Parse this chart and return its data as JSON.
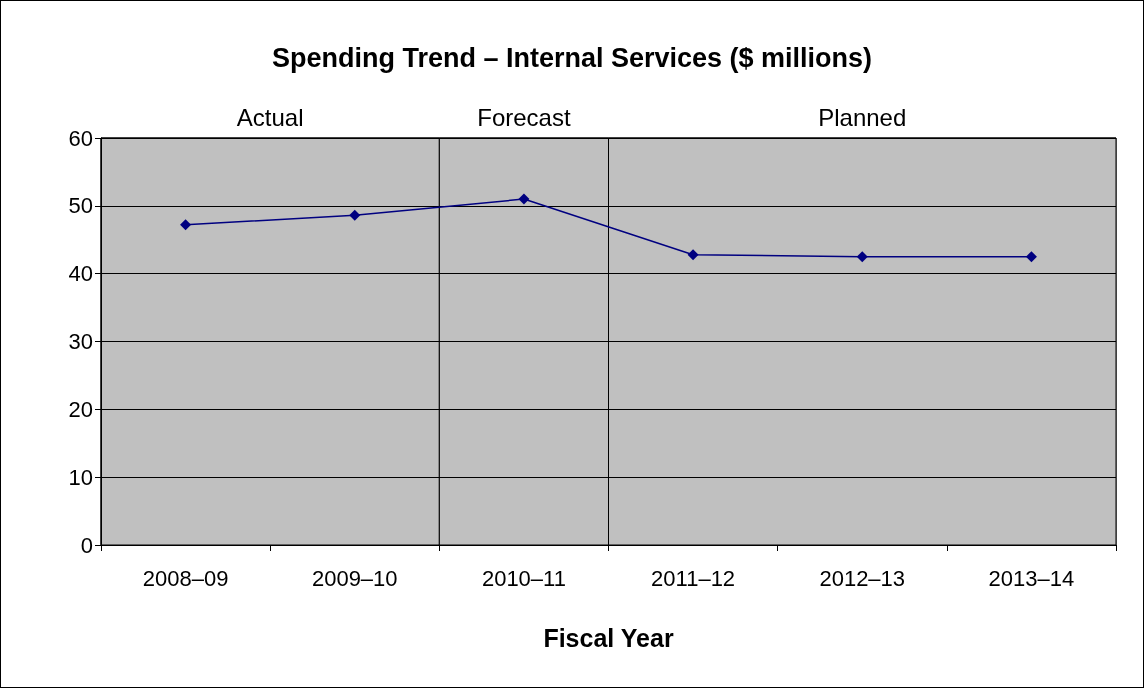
{
  "chart_data": {
    "type": "line",
    "title": "Spending Trend – Internal Services ($ millions)",
    "xlabel": "Fiscal Year",
    "categories": [
      "2008–09",
      "2009–10",
      "2010–11",
      "2011–12",
      "2012–13",
      "2013–14"
    ],
    "series": [
      {
        "color": "#000080",
        "values": [
          47.2,
          48.6,
          51.0,
          42.8,
          42.5,
          42.5
        ]
      }
    ],
    "ylim": [
      0,
      60
    ],
    "yticks": [
      0,
      10,
      20,
      30,
      40,
      50,
      60
    ],
    "grid": "y",
    "marker": "diamond",
    "line_style": "solid",
    "bands": [
      {
        "axis": "x",
        "from": "2008–09",
        "to": "2009–10",
        "label": "Actual",
        "color": "#c0c0c0"
      },
      {
        "axis": "x",
        "from": "2010–11",
        "to": "2010–11",
        "label": "Forecast",
        "color": "#c0c0c0"
      },
      {
        "axis": "x",
        "from": "2011–12",
        "to": "2013–14",
        "label": "Planned",
        "color": "#c0c0c0"
      }
    ]
  }
}
